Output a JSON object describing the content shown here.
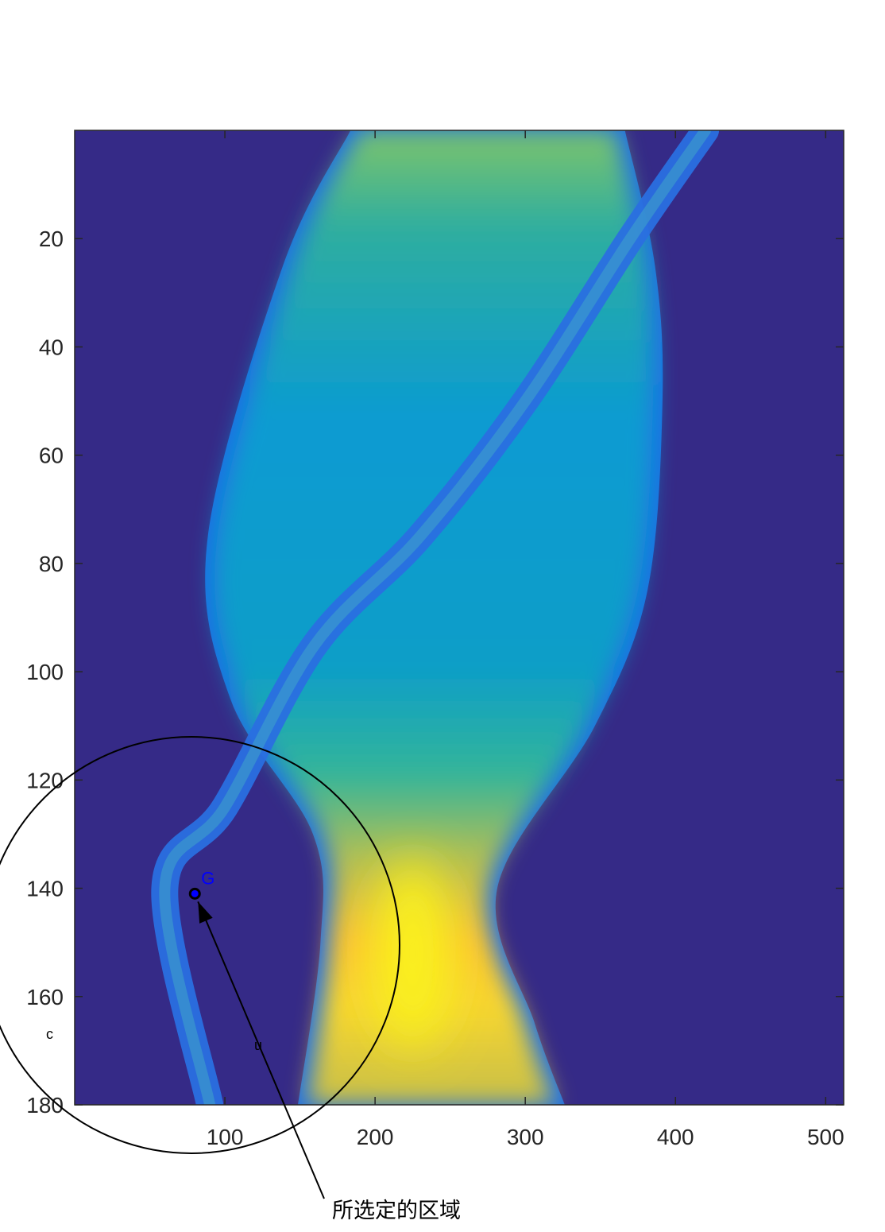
{
  "chart_data": {
    "type": "heatmap",
    "title": "",
    "xlabel": "",
    "ylabel": "",
    "xlim": [
      0,
      512
    ],
    "ylim": [
      0,
      180
    ],
    "y_reversed": true,
    "colormap": "parula",
    "background_color": "#352a87",
    "x_ticks": [
      100,
      200,
      300,
      400,
      500
    ],
    "y_ticks": [
      20,
      40,
      60,
      80,
      100,
      120,
      140,
      160,
      180
    ],
    "x_tick_labels": [
      "100",
      "200",
      "300",
      "400",
      "500"
    ],
    "y_tick_labels": [
      "20",
      "40",
      "60",
      "80",
      "100",
      "120",
      "140",
      "160",
      "180"
    ],
    "features": {
      "main_band": {
        "left_edge": [
          [
            190,
            0
          ],
          [
            145,
            25
          ],
          [
            95,
            75
          ],
          [
            110,
            105
          ],
          [
            165,
            130
          ],
          [
            170,
            150
          ],
          [
            155,
            180
          ]
        ],
        "right_edge": [
          [
            360,
            0
          ],
          [
            380,
            25
          ],
          [
            385,
            50
          ],
          [
            375,
            85
          ],
          [
            340,
            110
          ],
          [
            275,
            140
          ],
          [
            300,
            165
          ],
          [
            320,
            180
          ]
        ],
        "peak": {
          "x": 225,
          "y": 152,
          "level": 1.0
        },
        "upper_level": 0.55
      },
      "diagonal_stripe": {
        "points": [
          [
            420,
            0
          ],
          [
            370,
            20
          ],
          [
            300,
            50
          ],
          [
            230,
            75
          ],
          [
            160,
            95
          ],
          [
            100,
            125
          ],
          [
            60,
            140
          ],
          [
            90,
            180
          ]
        ]
      }
    },
    "annotations": {
      "point_label": "G",
      "point_x": 80,
      "point_y": 141,
      "point_color": "#0000ff",
      "circle_label": "c",
      "arrow_mid_label": "u",
      "callout_text": "所选定的区域"
    }
  }
}
